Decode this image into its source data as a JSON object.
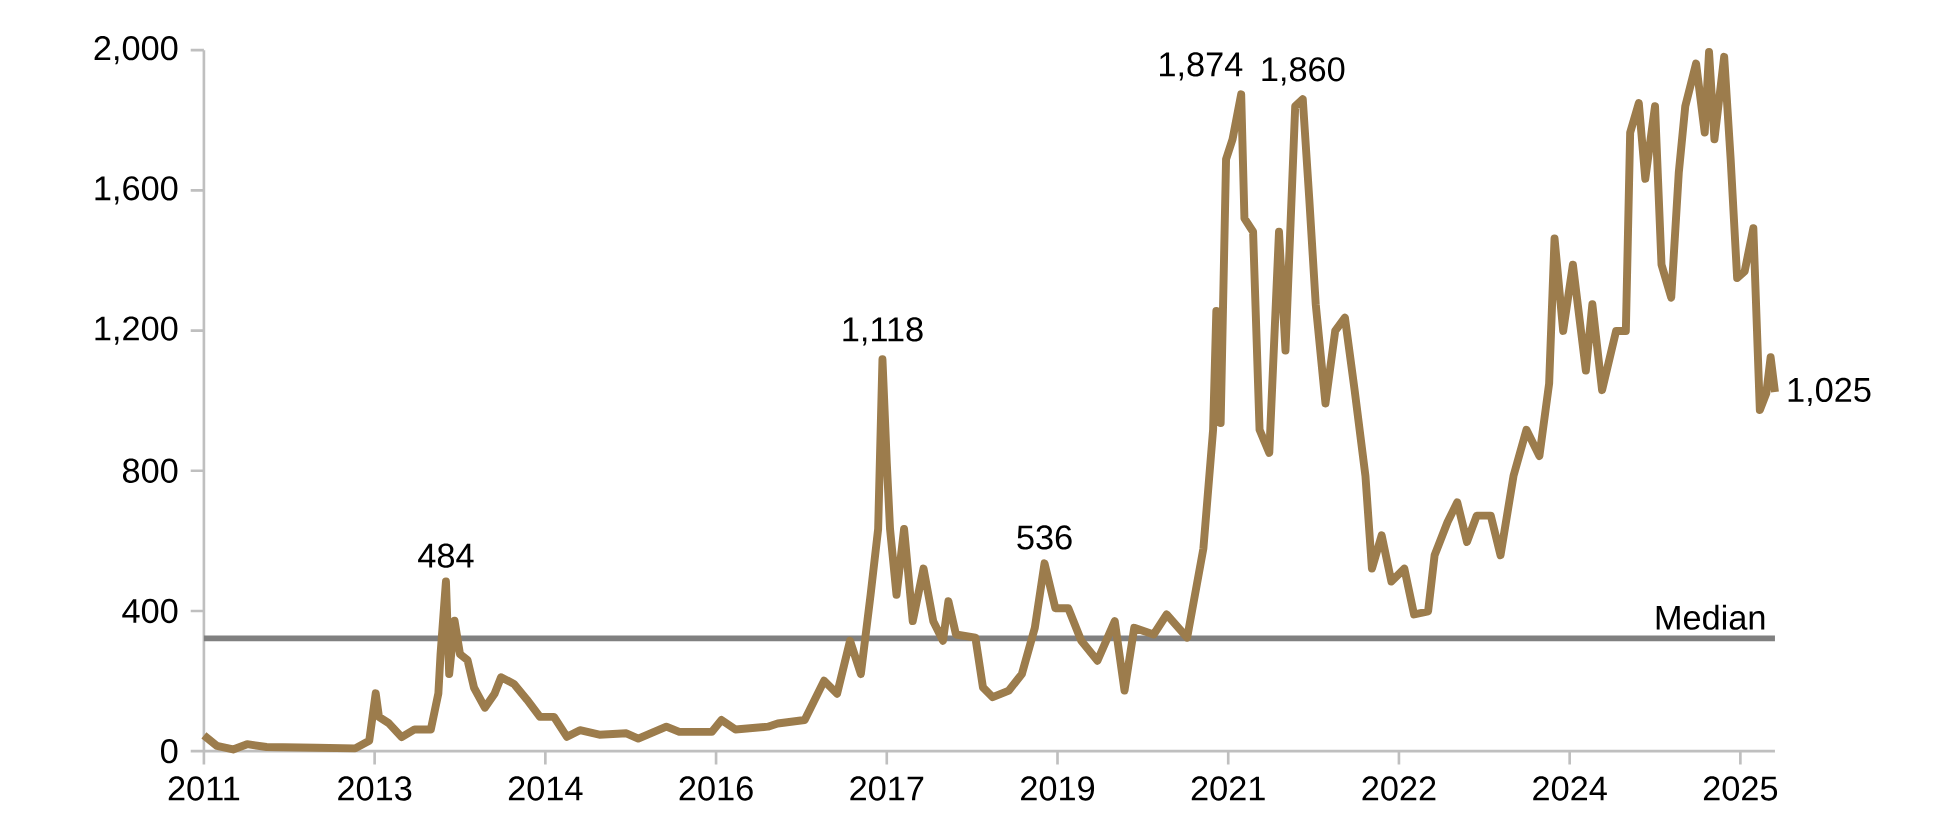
{
  "chart_data": {
    "type": "line",
    "color": "#9c7c4c",
    "x": [
      2011.1,
      2011.22,
      2011.37,
      2011.5,
      2011.68,
      2012.14,
      2012.5,
      2012.63,
      2012.69,
      2012.72,
      2012.81,
      2012.93,
      2013.05,
      2013.2,
      2013.27,
      2013.29,
      2013.34,
      2013.37,
      2013.42,
      2013.47,
      2013.54,
      2013.6,
      2013.7,
      2013.79,
      2013.85,
      2013.97,
      2014.09,
      2014.21,
      2014.34,
      2014.46,
      2014.58,
      2014.76,
      2015.01,
      2015.12,
      2015.38,
      2015.5,
      2015.8,
      2015.89,
      2016.02,
      2016.32,
      2016.41,
      2016.66,
      2016.84,
      2016.96,
      2017.08,
      2017.18,
      2017.27,
      2017.34,
      2017.38,
      2017.42,
      2017.45,
      2017.51,
      2017.58,
      2017.66,
      2017.76,
      2017.85,
      2017.94,
      2017.99,
      2018.06,
      2018.24,
      2018.31,
      2018.4,
      2018.55,
      2018.67,
      2018.79,
      2018.88,
      2018.98,
      2019.1,
      2019.22,
      2019.37,
      2019.53,
      2019.62,
      2019.71,
      2019.89,
      2020.01,
      2020.2,
      2020.35,
      2020.44,
      2020.47,
      2020.51,
      2020.56,
      2020.62,
      2020.7,
      2020.73,
      2020.81,
      2020.87,
      2020.96,
      2021.05,
      2021.11,
      2021.2,
      2021.27,
      2021.33,
      2021.39,
      2021.48,
      2021.57,
      2021.66,
      2021.75,
      2021.85,
      2021.91,
      2022.0,
      2022.09,
      2022.21,
      2022.3,
      2022.43,
      2022.49,
      2022.61,
      2022.7,
      2022.79,
      2022.88,
      2023.01,
      2023.1,
      2023.22,
      2023.34,
      2023.46,
      2023.55,
      2023.6,
      2023.68,
      2023.77,
      2023.89,
      2023.95,
      2024.04,
      2024.17,
      2024.26,
      2024.3,
      2024.38,
      2024.44,
      2024.53,
      2024.59,
      2024.68,
      2024.75,
      2024.81,
      2024.91,
      2024.99,
      2025.03,
      2025.08,
      2025.17,
      2025.23,
      2025.29,
      2025.36,
      2025.44,
      2025.5,
      2025.56,
      2025.6,
      2025.64
    ],
    "values": [
      45,
      15,
      5,
      20,
      12,
      10,
      8,
      30,
      165,
      98,
      80,
      40,
      62,
      62,
      165,
      277,
      484,
      220,
      372,
      277,
      260,
      181,
      124,
      164,
      211,
      192,
      147,
      98,
      98,
      41,
      60,
      47,
      51,
      36,
      70,
      55,
      55,
      89,
      62,
      70,
      79,
      89,
      201,
      164,
      315,
      220,
      446,
      634,
      1118,
      823,
      634,
      446,
      634,
      371,
      521,
      371,
      315,
      428,
      333,
      324,
      182,
      154,
      173,
      220,
      352,
      536,
      408,
      408,
      315,
      258,
      371,
      173,
      352,
      333,
      390,
      324,
      578,
      917,
      1256,
      936,
      1689,
      1746,
      1874,
      1520,
      1482,
      917,
      851,
      1482,
      1143,
      1840,
      1860,
      1576,
      1275,
      992,
      1199,
      1237,
      1030,
      785,
      521,
      616,
      484,
      521,
      390,
      399,
      559,
      654,
      710,
      597,
      672,
      672,
      559,
      785,
      917,
      842,
      1049,
      1463,
      1199,
      1388,
      1086,
      1275,
      1030,
      1199,
      1199,
      1765,
      1849,
      1633,
      1840,
      1388,
      1294,
      1651,
      1840,
      1962,
      1765,
      1995,
      1746,
      1981,
      1689,
      1350,
      1369,
      1492,
      973,
      1021,
      1124,
      1025
    ],
    "xlim": [
      2011.1,
      2025.64
    ],
    "xticks": [
      {
        "value": 2011.1,
        "label": "2011"
      },
      {
        "value": 2012.68,
        "label": "2013"
      },
      {
        "value": 2014.26,
        "label": "2014"
      },
      {
        "value": 2015.84,
        "label": "2016"
      },
      {
        "value": 2017.42,
        "label": "2017"
      },
      {
        "value": 2019.0,
        "label": "2019"
      },
      {
        "value": 2020.58,
        "label": "2021"
      },
      {
        "value": 2022.16,
        "label": "2022"
      },
      {
        "value": 2023.74,
        "label": "2024"
      },
      {
        "value": 2025.32,
        "label": "2025"
      }
    ],
    "ylim": [
      0,
      2000
    ],
    "yticks": [
      0,
      400,
      800,
      {
        "value": 1200,
        "label": "1,200"
      },
      {
        "value": 1600,
        "label": "1,600"
      },
      {
        "value": 2000,
        "label": "2,000"
      }
    ],
    "grid": false,
    "marker": "none",
    "line_style": "solid",
    "ref_lines": [
      {
        "axis": "y",
        "value": 322,
        "label": "Median",
        "color": "#808080"
      }
    ],
    "annotations": [
      {
        "text": "484",
        "x": 2013.34,
        "y": 484
      },
      {
        "text": "1,118",
        "x": 2017.38,
        "y": 1118
      },
      {
        "text": "536",
        "x": 2018.88,
        "y": 536
      },
      {
        "text": "1,874",
        "x": 2020.7,
        "y": 1874
      },
      {
        "text": "1,860",
        "x": 2021.27,
        "y": 1860
      },
      {
        "text": "1,025",
        "x": 2025.64,
        "y": 1025
      }
    ]
  }
}
